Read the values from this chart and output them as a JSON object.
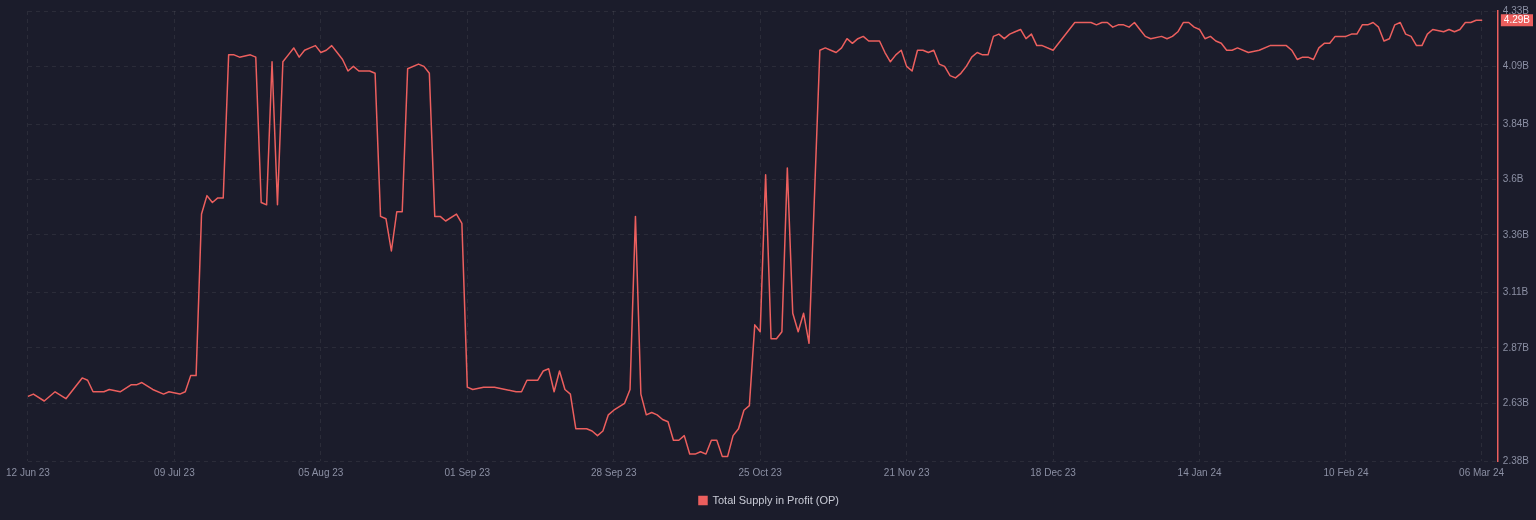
{
  "chart_data": {
    "type": "line",
    "x": [
      "2023-06-12",
      "2023-06-13",
      "2023-06-15",
      "2023-06-17",
      "2023-06-19",
      "2023-06-22",
      "2023-06-23",
      "2023-06-24",
      "2023-06-26",
      "2023-06-27",
      "2023-06-29",
      "2023-07-01",
      "2023-07-02",
      "2023-07-03",
      "2023-07-05",
      "2023-07-07",
      "2023-07-08",
      "2023-07-10",
      "2023-07-11",
      "2023-07-12",
      "2023-07-13",
      "2023-07-14",
      "2023-07-15",
      "2023-07-16",
      "2023-07-17",
      "2023-07-18",
      "2023-07-19",
      "2023-07-20",
      "2023-07-21",
      "2023-07-23",
      "2023-07-24",
      "2023-07-25",
      "2023-07-26",
      "2023-07-27",
      "2023-07-28",
      "2023-07-29",
      "2023-07-30",
      "2023-07-31",
      "2023-08-01",
      "2023-08-02",
      "2023-08-03",
      "2023-08-04",
      "2023-08-05",
      "2023-08-06",
      "2023-08-07",
      "2023-08-08",
      "2023-08-09",
      "2023-08-10",
      "2023-08-11",
      "2023-08-12",
      "2023-08-14",
      "2023-08-15",
      "2023-08-16",
      "2023-08-17",
      "2023-08-18",
      "2023-08-19",
      "2023-08-20",
      "2023-08-21",
      "2023-08-23",
      "2023-08-24",
      "2023-08-25",
      "2023-08-26",
      "2023-08-27",
      "2023-08-28",
      "2023-08-30",
      "2023-08-31",
      "2023-09-01",
      "2023-09-02",
      "2023-09-04",
      "2023-09-06",
      "2023-09-08",
      "2023-09-10",
      "2023-09-11",
      "2023-09-12",
      "2023-09-14",
      "2023-09-15",
      "2023-09-16",
      "2023-09-17",
      "2023-09-18",
      "2023-09-19",
      "2023-09-20",
      "2023-09-21",
      "2023-09-23",
      "2023-09-24",
      "2023-09-25",
      "2023-09-26",
      "2023-09-27",
      "2023-09-28",
      "2023-09-30",
      "2023-10-01",
      "2023-10-02",
      "2023-10-03",
      "2023-10-04",
      "2023-10-05",
      "2023-10-06",
      "2023-10-07",
      "2023-10-08",
      "2023-10-09",
      "2023-10-10",
      "2023-10-11",
      "2023-10-12",
      "2023-10-13",
      "2023-10-14",
      "2023-10-15",
      "2023-10-16",
      "2023-10-17",
      "2023-10-18",
      "2023-10-19",
      "2023-10-20",
      "2023-10-21",
      "2023-10-22",
      "2023-10-23",
      "2023-10-24",
      "2023-10-25",
      "2023-10-26",
      "2023-10-27",
      "2023-10-28",
      "2023-10-29",
      "2023-10-30",
      "2023-10-31",
      "2023-11-01",
      "2023-11-02",
      "2023-11-03",
      "2023-11-05",
      "2023-11-06",
      "2023-11-07",
      "2023-11-08",
      "2023-11-09",
      "2023-11-10",
      "2023-11-11",
      "2023-11-12",
      "2023-11-13",
      "2023-11-14",
      "2023-11-16",
      "2023-11-17",
      "2023-11-18",
      "2023-11-19",
      "2023-11-20",
      "2023-11-21",
      "2023-11-22",
      "2023-11-23",
      "2023-11-24",
      "2023-11-25",
      "2023-11-26",
      "2023-11-27",
      "2023-11-28",
      "2023-11-29",
      "2023-11-30",
      "2023-12-01",
      "2023-12-02",
      "2023-12-03",
      "2023-12-04",
      "2023-12-05",
      "2023-12-06",
      "2023-12-07",
      "2023-12-08",
      "2023-12-09",
      "2023-12-10",
      "2023-12-11",
      "2023-12-12",
      "2023-12-13",
      "2023-12-14",
      "2023-12-15",
      "2023-12-16",
      "2023-12-18",
      "2023-12-22",
      "2023-12-24",
      "2023-12-25",
      "2023-12-26",
      "2023-12-27",
      "2023-12-28",
      "2023-12-29",
      "2023-12-30",
      "2023-12-31",
      "2024-01-01",
      "2024-01-02",
      "2024-01-03",
      "2024-01-04",
      "2024-01-05",
      "2024-01-07",
      "2024-01-08",
      "2024-01-09",
      "2024-01-10",
      "2024-01-11",
      "2024-01-12",
      "2024-01-13",
      "2024-01-14",
      "2024-01-15",
      "2024-01-16",
      "2024-01-17",
      "2024-01-18",
      "2024-01-19",
      "2024-01-20",
      "2024-01-21",
      "2024-01-23",
      "2024-01-25",
      "2024-01-27",
      "2024-01-29",
      "2024-01-30",
      "2024-01-31",
      "2024-02-01",
      "2024-02-02",
      "2024-02-03",
      "2024-02-04",
      "2024-02-05",
      "2024-02-06",
      "2024-02-07",
      "2024-02-08",
      "2024-02-10",
      "2024-02-11",
      "2024-02-12",
      "2024-02-13",
      "2024-02-14",
      "2024-02-15",
      "2024-02-16",
      "2024-02-17",
      "2024-02-18",
      "2024-02-19",
      "2024-02-20",
      "2024-02-21",
      "2024-02-22",
      "2024-02-23",
      "2024-02-24",
      "2024-02-25",
      "2024-02-26",
      "2024-02-28",
      "2024-02-29",
      "2024-03-01",
      "2024-03-02",
      "2024-03-03",
      "2024-03-04",
      "2024-03-05",
      "2024-03-06"
    ],
    "series": [
      {
        "name": "Total Supply in Profit (OP)",
        "color": "#ec5f5e",
        "values": [
          2.66,
          2.67,
          2.64,
          2.68,
          2.65,
          2.74,
          2.73,
          2.68,
          2.68,
          2.69,
          2.68,
          2.71,
          2.71,
          2.72,
          2.69,
          2.67,
          2.68,
          2.67,
          2.68,
          2.75,
          2.75,
          3.45,
          3.53,
          3.5,
          3.52,
          3.52,
          4.14,
          4.14,
          4.13,
          4.14,
          4.13,
          3.5,
          3.49,
          4.11,
          3.49,
          4.11,
          4.14,
          4.17,
          4.13,
          4.16,
          4.17,
          4.18,
          4.15,
          4.16,
          4.18,
          4.15,
          4.12,
          4.07,
          4.09,
          4.07,
          4.07,
          4.06,
          3.44,
          3.43,
          3.29,
          3.46,
          3.46,
          4.08,
          4.1,
          4.09,
          4.06,
          3.44,
          3.44,
          3.42,
          3.45,
          3.41,
          2.7,
          2.69,
          2.7,
          2.7,
          2.69,
          2.68,
          2.68,
          2.73,
          2.73,
          2.77,
          2.78,
          2.68,
          2.77,
          2.69,
          2.67,
          2.52,
          2.52,
          2.51,
          2.49,
          2.51,
          2.58,
          2.6,
          2.63,
          2.69,
          3.44,
          2.67,
          2.58,
          2.59,
          2.58,
          2.56,
          2.55,
          2.47,
          2.47,
          2.49,
          2.41,
          2.41,
          2.42,
          2.41,
          2.47,
          2.47,
          2.4,
          2.4,
          2.49,
          2.52,
          2.6,
          2.62,
          2.97,
          2.94,
          3.62,
          2.91,
          2.91,
          2.94,
          3.65,
          3.02,
          2.94,
          3.02,
          2.89,
          4.16,
          4.17,
          4.16,
          4.15,
          4.17,
          4.21,
          4.19,
          4.21,
          4.22,
          4.2,
          4.2,
          4.15,
          4.11,
          4.14,
          4.16,
          4.09,
          4.07,
          4.16,
          4.16,
          4.15,
          4.16,
          4.1,
          4.09,
          4.05,
          4.04,
          4.06,
          4.09,
          4.13,
          4.15,
          4.14,
          4.14,
          4.22,
          4.23,
          4.21,
          4.23,
          4.24,
          4.25,
          4.21,
          4.23,
          4.18,
          4.18,
          4.16,
          4.28,
          4.28,
          4.28,
          4.27,
          4.28,
          4.28,
          4.26,
          4.27,
          4.27,
          4.26,
          4.28,
          4.25,
          4.22,
          4.21,
          4.22,
          4.21,
          4.22,
          4.24,
          4.28,
          4.28,
          4.26,
          4.25,
          4.21,
          4.22,
          4.2,
          4.19,
          4.16,
          4.16,
          4.17,
          4.15,
          4.16,
          4.18,
          4.18,
          4.18,
          4.16,
          4.12,
          4.13,
          4.13,
          4.12,
          4.17,
          4.19,
          4.19,
          4.22,
          4.22,
          4.23,
          4.23,
          4.27,
          4.27,
          4.28,
          4.26,
          4.2,
          4.21,
          4.27,
          4.28,
          4.23,
          4.22,
          4.18,
          4.18,
          4.23,
          4.25,
          4.24,
          4.25,
          4.24,
          4.25,
          4.28,
          4.28,
          4.29,
          4.29
        ]
      }
    ],
    "xlim": [
      "2023-06-12",
      "2024-03-09"
    ],
    "xticks": [
      {
        "value": "2023-06-12",
        "label": "12 Jun 23"
      },
      {
        "value": "2023-07-09",
        "label": "09 Jul 23"
      },
      {
        "value": "2023-08-05",
        "label": "05 Aug 23"
      },
      {
        "value": "2023-09-01",
        "label": "01 Sep 23"
      },
      {
        "value": "2023-09-28",
        "label": "28 Sep 23"
      },
      {
        "value": "2023-10-25",
        "label": "25 Oct 23"
      },
      {
        "value": "2023-11-21",
        "label": "21 Nov 23"
      },
      {
        "value": "2023-12-18",
        "label": "18 Dec 23"
      },
      {
        "value": "2024-01-14",
        "label": "14 Jan 24"
      },
      {
        "value": "2024-02-10",
        "label": "10 Feb 24"
      },
      {
        "value": "2024-03-06",
        "label": "06 Mar 24"
      }
    ],
    "ylim": [
      2.38,
      4.33
    ],
    "yticks": [
      {
        "value": 2.38,
        "label": "2.38B"
      },
      {
        "value": 2.63,
        "label": "2.63B"
      },
      {
        "value": 2.87,
        "label": "2.87B"
      },
      {
        "value": 3.11,
        "label": "3.11B"
      },
      {
        "value": 3.36,
        "label": "3.36B"
      },
      {
        "value": 3.6,
        "label": "3.6B"
      },
      {
        "value": 3.84,
        "label": "3.84B"
      },
      {
        "value": 4.09,
        "label": "4.09B"
      },
      {
        "value": 4.33,
        "label": "4.33B"
      }
    ],
    "annotations": [
      {
        "text": "4.29B",
        "x": "2024-03-06",
        "y": 4.29
      }
    ],
    "grid": true,
    "legend": "bottom",
    "marker": "none",
    "line_style": "solid"
  }
}
